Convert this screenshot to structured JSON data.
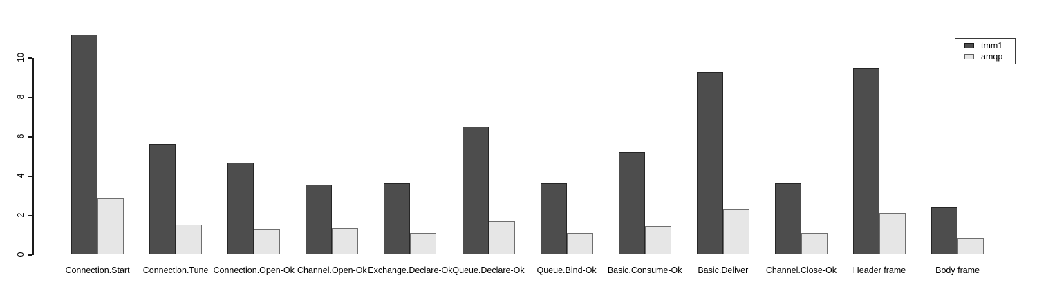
{
  "chart_data": {
    "type": "bar",
    "title": "",
    "xlabel": "",
    "ylabel": "",
    "grid": false,
    "legend_position": "top-right",
    "ylim": [
      0,
      11.5
    ],
    "y_ticks": [
      "0",
      "2",
      "4",
      "6",
      "8",
      "10"
    ],
    "categories": [
      "Connection.Start",
      "Connection.Tune",
      "Connection.Open-Ok",
      "Channel.Open-Ok",
      "Exchange.Declare-Ok",
      "Queue.Declare-Ok",
      "Queue.Bind-Ok",
      "Basic.Consume-Ok",
      "Basic.Deliver",
      "Channel.Close-Ok",
      "Header frame",
      "Body frame"
    ],
    "series": [
      {
        "name": "tmm1",
        "color": "#4D4D4D",
        "border_color": "#262626",
        "swatch_border": "#1a1a1a",
        "values": [
          11.15,
          5.6,
          4.65,
          3.55,
          3.6,
          6.5,
          3.6,
          5.2,
          9.25,
          3.6,
          9.45,
          2.4
        ]
      },
      {
        "name": "amqp",
        "color": "#E6E6E6",
        "border_color": "#6f6f6f",
        "swatch_border": "#5f5f5f",
        "values": [
          2.85,
          1.5,
          1.3,
          1.35,
          1.1,
          1.7,
          1.1,
          1.45,
          2.3,
          1.1,
          2.1,
          0.85
        ]
      }
    ]
  }
}
